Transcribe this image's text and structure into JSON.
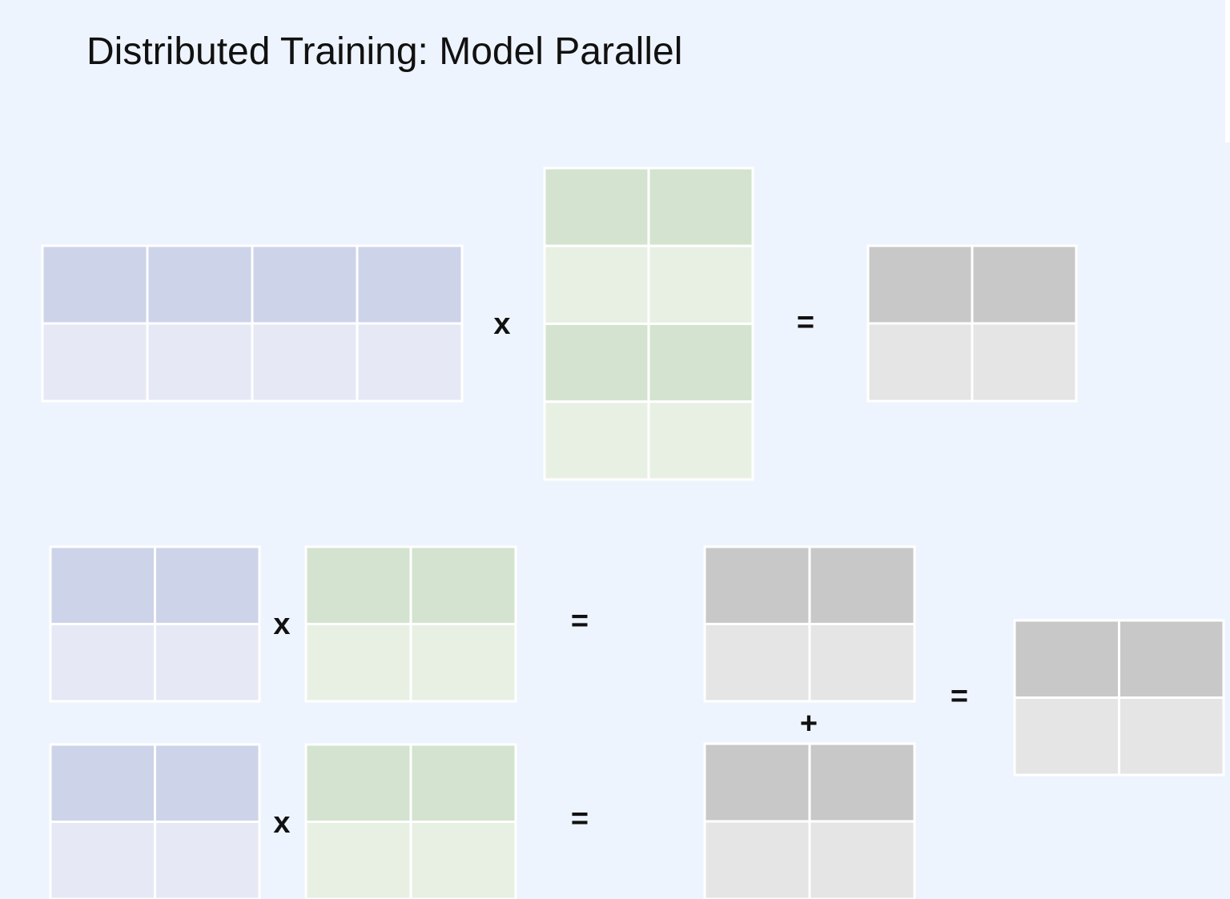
{
  "title": "Distributed Training: Model Parallel",
  "top": {
    "operators": [
      "x",
      "="
    ]
  },
  "bottom": {
    "row_1_operators": [
      "x",
      "="
    ],
    "row_2_operators": [
      "x",
      "="
    ],
    "sum_operator": "+",
    "result_operator": "="
  }
}
